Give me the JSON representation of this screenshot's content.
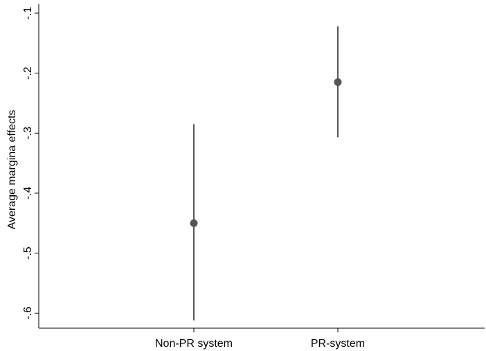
{
  "chart_data": {
    "type": "scatter",
    "title": "",
    "xlabel": "",
    "ylabel": "Average margina effects",
    "categories": [
      "Non-PR system",
      "PR-system"
    ],
    "series": [
      {
        "estimate": [
          -0.45,
          -0.215
        ],
        "ci_lower": [
          -0.612,
          -0.307
        ],
        "ci_upper": [
          -0.285,
          -0.122
        ]
      }
    ],
    "ylim": [
      -0.625,
      -0.085
    ],
    "yticks": [
      -0.1,
      -0.2,
      -0.3,
      -0.4,
      -0.5,
      -0.6
    ],
    "ytick_labels": [
      "-.1",
      "-.2",
      "-.3",
      "-.4",
      "-.5",
      "-.6"
    ],
    "grid": false,
    "legend": "none",
    "colors": {
      "marker": "#555555",
      "axis": "#000000"
    }
  }
}
